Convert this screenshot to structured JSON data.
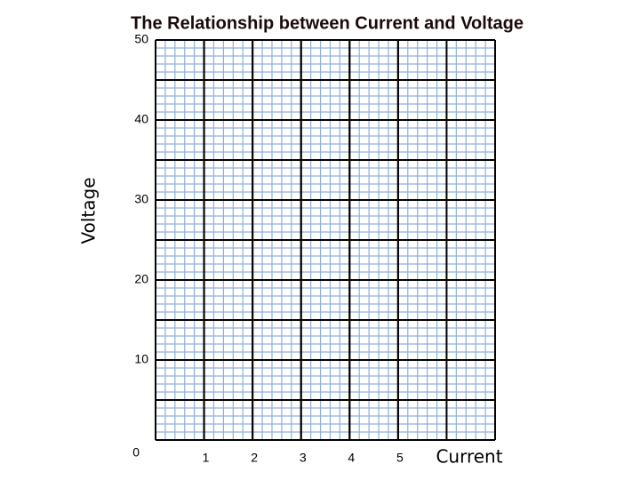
{
  "chart_data": {
    "type": "line",
    "title": "The Relationship between Current and Voltage",
    "xlabel": "Current",
    "ylabel": "Voltage",
    "xlim": [
      0,
      7
    ],
    "xticks": [
      1,
      2,
      3,
      4,
      5
    ],
    "ylim": [
      0,
      50
    ],
    "yticks": [
      0,
      10,
      20,
      30,
      40,
      50
    ],
    "grid": true,
    "series": []
  }
}
